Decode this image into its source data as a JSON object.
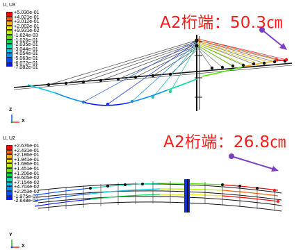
{
  "panels": [
    {
      "legend": {
        "title": "U, U3",
        "labels": [
          "+5.030e-01",
          "+4.021e-01",
          "+3.012e-01",
          "+2.002e-01",
          "+9.931e-02",
          "-1.624e-03",
          "-1.026e-01",
          "-2.035e-01",
          "-3.044e-01",
          "-4.054e-01",
          "-5.063e-01",
          "-6.072e-01",
          "-7.082e-01"
        ],
        "colors": [
          "#ff0000",
          "#ff5a00",
          "#ffab00",
          "#f2e600",
          "#b5f000",
          "#56e800",
          "#00dc4a",
          "#00d8a6",
          "#00c8e8",
          "#0090ff",
          "#0050ff",
          "#0018ff"
        ]
      },
      "callout": "A2桁端：50.3㎝",
      "axis_labels": {
        "up": "Z",
        "right": "X"
      }
    },
    {
      "legend": {
        "title": "U, U2",
        "labels": [
          "+2.676e-01",
          "+2.431e-01",
          "+2.186e-01",
          "+1.941e-01",
          "+1.696e-01",
          "+1.451e-01",
          "+1.206e-01",
          "+9.605e-02",
          "+7.154e-02",
          "+4.704e-02",
          "+2.253e-02",
          "-1.975e-03",
          "-2.648e-02"
        ],
        "colors": [
          "#ff0000",
          "#ff5a00",
          "#ffab00",
          "#f2e600",
          "#b5f000",
          "#56e800",
          "#00dc4a",
          "#00d8a6",
          "#00c8e8",
          "#0090ff",
          "#0050ff",
          "#0018ff"
        ]
      },
      "callout": "A2桁端：26.8㎝",
      "axis_labels": {
        "up": "Y",
        "right": "X"
      }
    }
  ],
  "colors": {
    "callout": "#ff1a1a",
    "arrow": "#7b3fc4",
    "deck": "#111111"
  }
}
